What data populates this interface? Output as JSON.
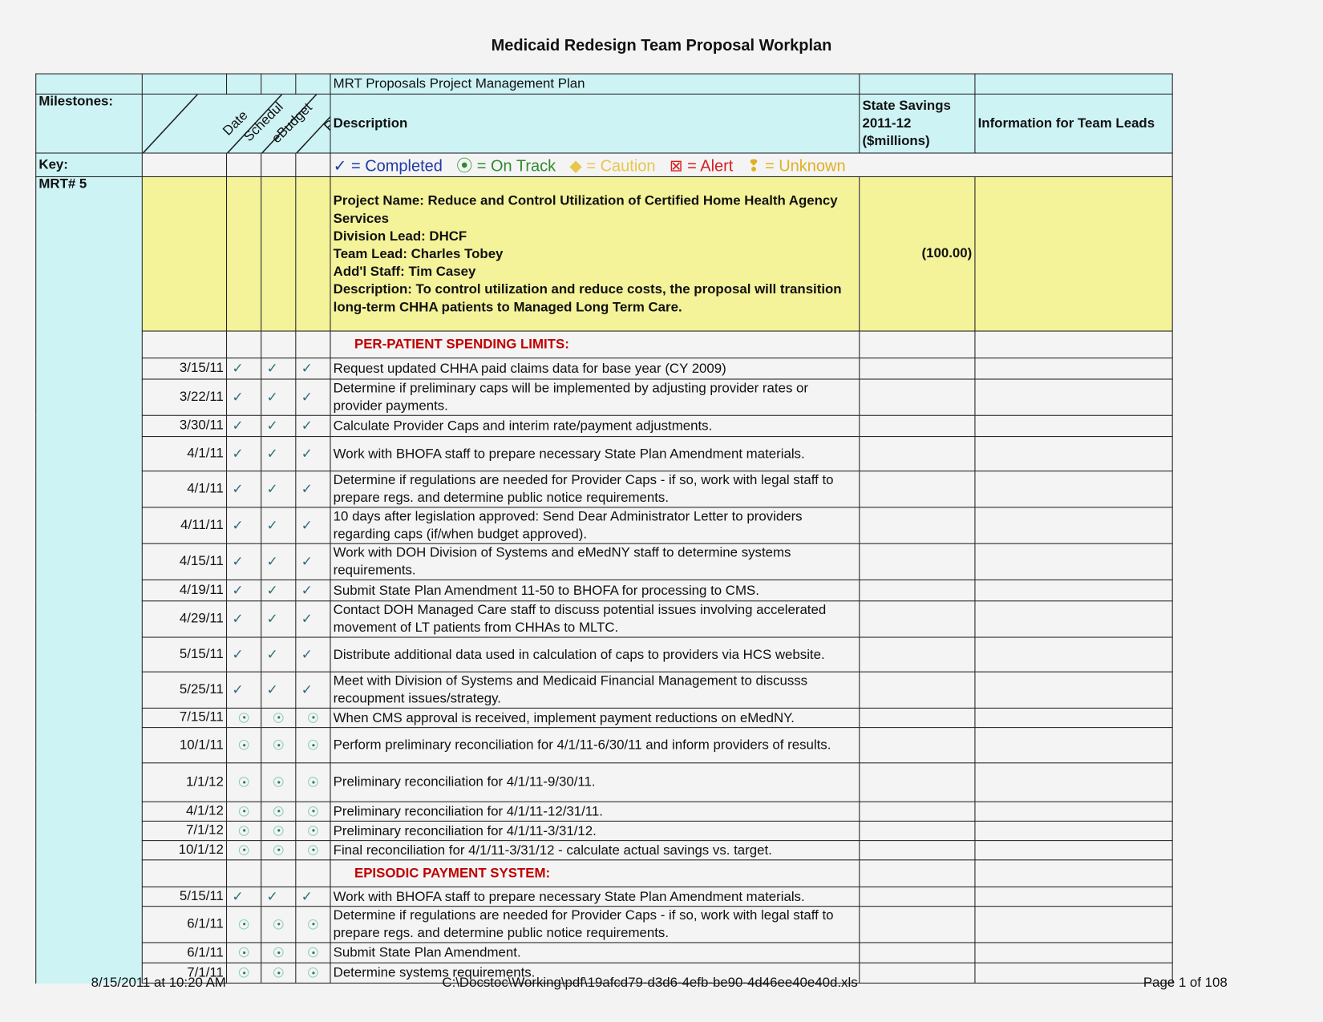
{
  "title": "Medicaid Redesign Team Proposal Workplan",
  "header": {
    "plan_title": "MRT Proposals Project Management Plan",
    "milestones": "Milestones:",
    "col_date": "Date",
    "col_schedule": "Schedul",
    "col_budget": "eBudget",
    "col_risk": "Risk",
    "col_description": "Description",
    "col_savings": "State Savings 2011-12 ($millions)",
    "col_info": "Information for Team Leads"
  },
  "key": {
    "label": "Key:",
    "completed": "✓ = Completed",
    "on_track": "⦿ = On Track",
    "caution": "◆   = Caution",
    "alert": "⊠   = Alert",
    "unknown": "❢ = Unknown",
    "colors": {
      "completed": "#1f3aa8",
      "on_track": "#2e8b2e",
      "caution": "#e8c64a",
      "alert": "#d42020",
      "unknown": "#e0b020"
    }
  },
  "project": {
    "id": "MRT# 5",
    "lines": [
      "Project Name:  Reduce and Control Utilization of Certified Home Health Agency Services",
      "Division Lead: DHCF",
      "Team Lead: Charles Tobey",
      "Add'l Staff:  Tim Casey",
      "Description:  To control utilization and reduce costs, the proposal will transition long-term CHHA patients to Managed Long Term Care."
    ],
    "savings": "(100.00)"
  },
  "sections": [
    {
      "title": "PER-PATIENT SPENDING LIMITS:",
      "rows": [
        {
          "date": "3/15/11",
          "status": "completed",
          "text": "Request updated CHHA paid claims data for base year (CY 2009)"
        },
        {
          "date": "3/22/11",
          "status": "completed",
          "text": "Determine if preliminary caps will be implemented by adjusting provider rates or provider payments."
        },
        {
          "date": "3/30/11",
          "status": "completed",
          "text": "Calculate Provider Caps and interim rate/payment adjustments."
        },
        {
          "date": "4/1/11",
          "status": "completed",
          "text": "Work with BHOFA staff to prepare necessary State Plan Amendment materials."
        },
        {
          "date": "4/1/11",
          "status": "completed",
          "text": "Determine if regulations are needed for Provider Caps - if so, work with legal staff to prepare regs. and determine public notice requirements."
        },
        {
          "date": "4/11/11",
          "status": "completed",
          "text": "10 days after legislation approved:  Send Dear Administrator Letter to providers regarding caps (if/when budget approved)."
        },
        {
          "date": "4/15/11",
          "status": "completed",
          "text": "Work with DOH Division of Systems and eMedNY staff to determine systems requirements."
        },
        {
          "date": "4/19/11",
          "status": "completed",
          "text": "Submit State Plan Amendment 11-50 to BHOFA for processing to CMS."
        },
        {
          "date": "4/29/11",
          "status": "completed",
          "text": "Contact DOH Managed Care staff to discuss potential issues involving accelerated movement of LT patients from CHHAs to MLTC."
        },
        {
          "date": "5/15/11",
          "status": "completed",
          "text": "Distribute additional data used in calculation of caps to providers via HCS website."
        },
        {
          "date": "5/25/11",
          "status": "completed",
          "text": "Meet with Division of Systems and Medicaid Financial Management to discusss recoupment issues/strategy."
        },
        {
          "date": "7/15/11",
          "status": "on_track",
          "text": "When CMS approval is received, implement payment reductions on eMedNY."
        },
        {
          "date": "10/1/11",
          "status": "on_track",
          "text": "Perform preliminary reconciliation for 4/1/11-6/30/11 and inform providers of results."
        },
        {
          "date": "1/1/12",
          "status": "on_track",
          "text": "Preliminary reconciliation for 4/1/11-9/30/11."
        },
        {
          "date": "4/1/12",
          "status": "on_track",
          "text": "Preliminary reconciliation for 4/1/11-12/31/11."
        },
        {
          "date": "7/1/12",
          "status": "on_track",
          "text": "Preliminary reconciliation for 4/1/11-3/31/12."
        },
        {
          "date": "10/1/12",
          "status": "on_track",
          "text": "Final reconciliation for 4/1/11-3/31/12 - calculate actual savings vs. target."
        }
      ]
    },
    {
      "title": "EPISODIC PAYMENT SYSTEM:",
      "rows": [
        {
          "date": "5/15/11",
          "status": "completed",
          "text": "Work with BHOFA staff to prepare necessary State Plan Amendment materials."
        },
        {
          "date": "6/1/11",
          "status": "on_track",
          "text": "Determine if regulations are needed for Provider Caps - if so, work with legal staff to prepare regs. and determine public notice requirements."
        },
        {
          "date": "6/1/11",
          "status": "on_track",
          "text": "Submit State Plan Amendment."
        },
        {
          "date": "7/1/11",
          "status": "on_track",
          "text": "Determine systems requirements."
        }
      ]
    }
  ],
  "footer": {
    "timestamp": "8/15/2011 at 10:20 AM",
    "path": "C:\\Docstoc\\Working\\pdf\\19afcd79-d3d6-4efb-be90-4d46ee40e40d.xls",
    "page": "Page 1 of 108"
  }
}
